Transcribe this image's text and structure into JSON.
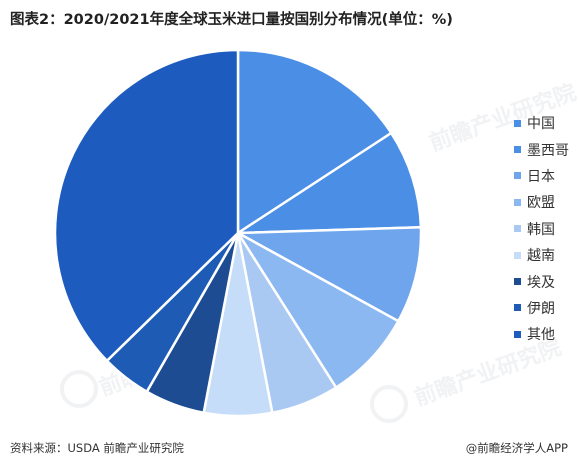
{
  "title": "图表2：2020/2021年度全球玉米进口量按国别分布情况(单位：%)",
  "source": "资料来源：USDA 前瞻产业研究院",
  "brand": "@前瞻经济学人APP",
  "watermark": "前瞻产业研究院",
  "chart_data": {
    "type": "pie",
    "title": "图表2：2020/2021年度全球玉米进口量按国别分布情况(单位：%)",
    "legend_position": "right",
    "slices": [
      {
        "label": "中国",
        "value": 15.8,
        "color": "#4a8ee6"
      },
      {
        "label": "墨西哥",
        "value": 8.7,
        "color": "#4a8ee6"
      },
      {
        "label": "日本",
        "value": 8.5,
        "color": "#6fa5ec"
      },
      {
        "label": "欧盟",
        "value": 8.0,
        "color": "#8bb8f0"
      },
      {
        "label": "韩国",
        "value": 6.0,
        "color": "#a9c9f3"
      },
      {
        "label": "越南",
        "value": 6.0,
        "color": "#c5ddf8"
      },
      {
        "label": "埃及",
        "value": 5.3,
        "color": "#1d4c93"
      },
      {
        "label": "伊朗",
        "value": 4.4,
        "color": "#1d5bb4"
      },
      {
        "label": "其他",
        "value": 37.3,
        "color": "#1d5bbf"
      }
    ]
  }
}
